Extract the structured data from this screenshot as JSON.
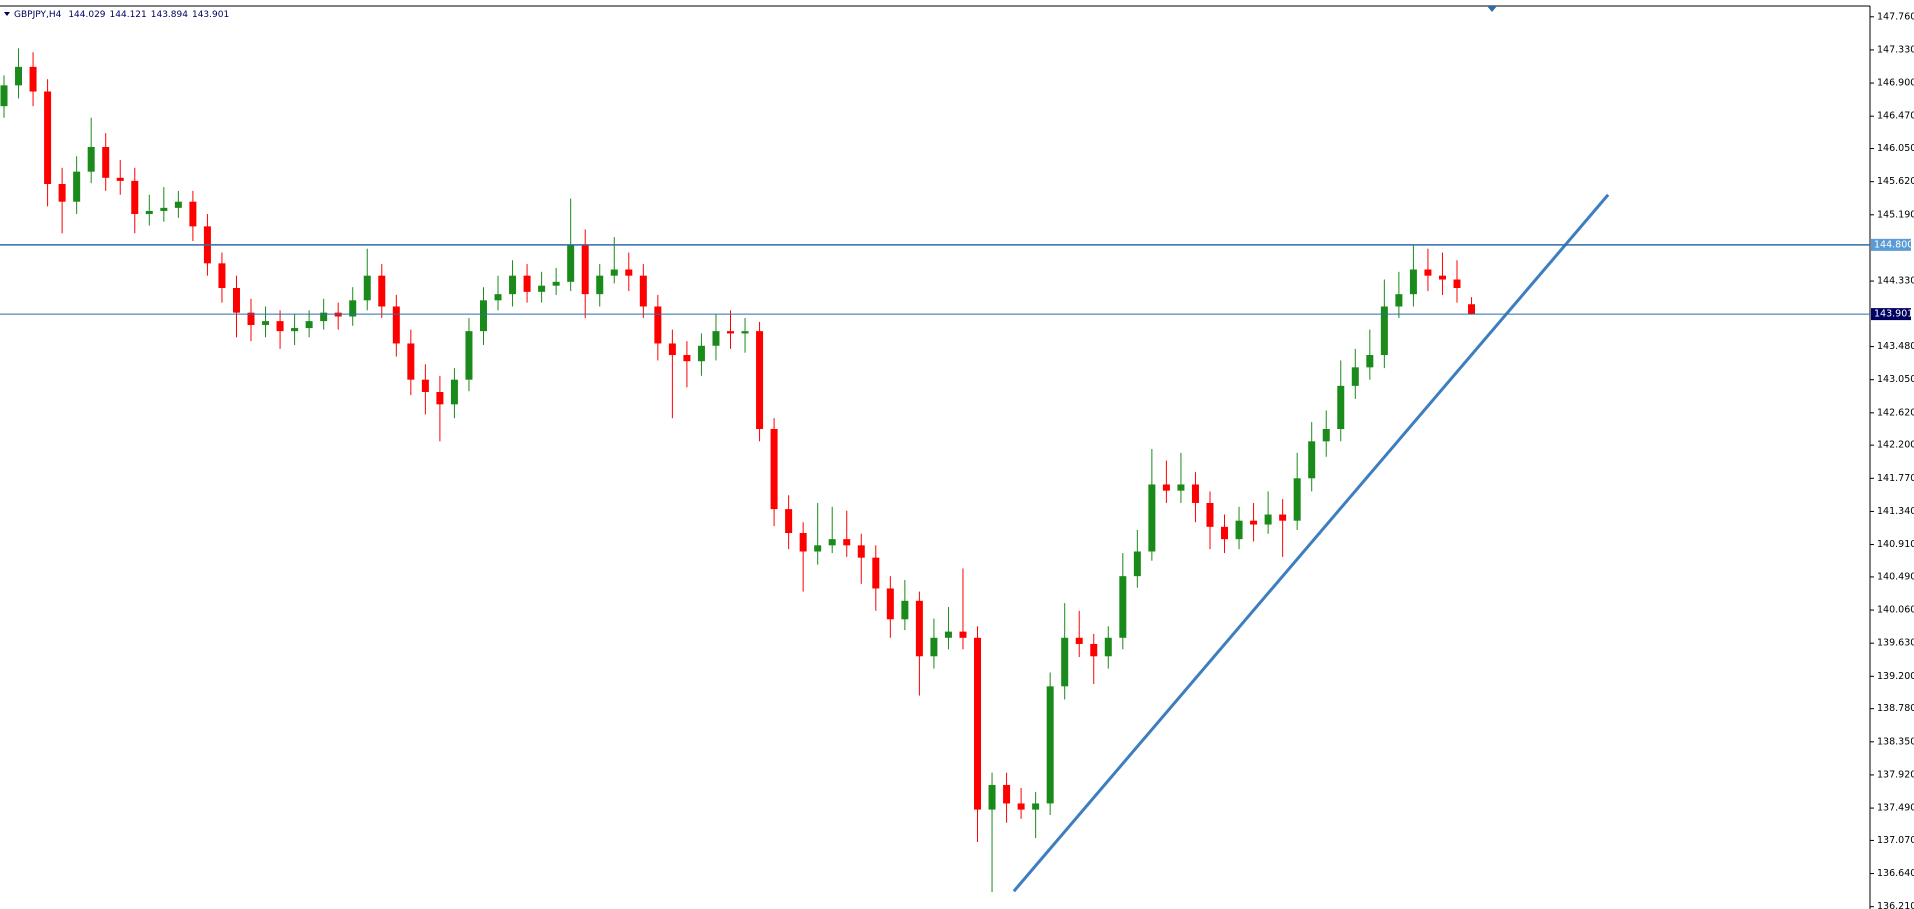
{
  "chart_data": {
    "type": "candlestick",
    "symbol": "GBPJPY,H4",
    "up_color": "#1a8a1a",
    "down_color": "#ff0000",
    "ylim": [
      136.18,
      147.9
    ],
    "yticks": [
      {
        "value": 147.76,
        "label": "147.760"
      },
      {
        "value": 147.33,
        "label": "147.330"
      },
      {
        "value": 146.9,
        "label": "146.900"
      },
      {
        "value": 146.47,
        "label": "146.470"
      },
      {
        "value": 146.05,
        "label": "146.050"
      },
      {
        "value": 145.62,
        "label": "145.620"
      },
      {
        "value": 145.19,
        "label": "145.190"
      },
      {
        "value": 144.33,
        "label": "144.330"
      },
      {
        "value": 143.48,
        "label": "143.480"
      },
      {
        "value": 143.05,
        "label": "143.050"
      },
      {
        "value": 142.62,
        "label": "142.620"
      },
      {
        "value": 142.2,
        "label": "142.200"
      },
      {
        "value": 141.77,
        "label": "141.770"
      },
      {
        "value": 141.34,
        "label": "141.340"
      },
      {
        "value": 140.91,
        "label": "140.910"
      },
      {
        "value": 140.49,
        "label": "140.490"
      },
      {
        "value": 140.06,
        "label": "140.060"
      },
      {
        "value": 139.63,
        "label": "139.630"
      },
      {
        "value": 139.2,
        "label": "139.200"
      },
      {
        "value": 138.78,
        "label": "138.780"
      },
      {
        "value": 138.35,
        "label": "138.350"
      },
      {
        "value": 137.92,
        "label": "137.920"
      },
      {
        "value": 137.49,
        "label": "137.490"
      },
      {
        "value": 137.07,
        "label": "137.070"
      },
      {
        "value": 136.64,
        "label": "136.640"
      },
      {
        "value": 136.21,
        "label": "136.210"
      }
    ],
    "hlines": [
      {
        "value": 144.8,
        "label": "144.800",
        "color": "#2e6da4"
      },
      {
        "value": 143.901,
        "color": "#2e6da4"
      }
    ],
    "trendline": {
      "x": [
        69.5,
        110.4
      ],
      "y": [
        136.41,
        145.45
      ],
      "color": "#3d7ebf"
    },
    "candles": [
      [
        146.6,
        147.0,
        146.45,
        146.87
      ],
      [
        146.87,
        147.35,
        146.7,
        147.11
      ],
      [
        147.11,
        147.3,
        146.6,
        146.79
      ],
      [
        146.79,
        146.95,
        145.3,
        145.59
      ],
      [
        145.59,
        145.8,
        144.95,
        145.36
      ],
      [
        145.36,
        145.95,
        145.2,
        145.75
      ],
      [
        145.75,
        146.45,
        145.6,
        146.07
      ],
      [
        146.07,
        146.25,
        145.5,
        145.67
      ],
      [
        145.67,
        145.9,
        145.45,
        145.63
      ],
      [
        145.63,
        145.8,
        144.95,
        145.2
      ],
      [
        145.2,
        145.45,
        145.05,
        145.24
      ],
      [
        145.24,
        145.55,
        145.1,
        145.28
      ],
      [
        145.28,
        145.5,
        145.15,
        145.36
      ],
      [
        145.36,
        145.5,
        144.85,
        145.04
      ],
      [
        145.04,
        145.2,
        144.4,
        144.56
      ],
      [
        144.56,
        144.7,
        144.05,
        144.24
      ],
      [
        144.24,
        144.4,
        143.6,
        143.92
      ],
      [
        143.92,
        144.1,
        143.55,
        143.76
      ],
      [
        143.76,
        144.0,
        143.6,
        143.81
      ],
      [
        143.81,
        143.95,
        143.45,
        143.68
      ],
      [
        143.68,
        143.9,
        143.5,
        143.72
      ],
      [
        143.72,
        143.95,
        143.6,
        143.81
      ],
      [
        143.81,
        144.1,
        143.7,
        143.92
      ],
      [
        143.92,
        144.05,
        143.7,
        143.87
      ],
      [
        143.87,
        144.25,
        143.75,
        144.08
      ],
      [
        144.08,
        144.75,
        143.95,
        144.4
      ],
      [
        144.4,
        144.55,
        143.85,
        144.0
      ],
      [
        144.0,
        144.15,
        143.35,
        143.52
      ],
      [
        143.52,
        143.7,
        142.85,
        143.05
      ],
      [
        143.05,
        143.25,
        142.6,
        142.89
      ],
      [
        142.89,
        143.1,
        142.25,
        142.73
      ],
      [
        142.73,
        143.2,
        142.55,
        143.05
      ],
      [
        143.05,
        143.85,
        142.9,
        143.68
      ],
      [
        143.68,
        144.25,
        143.5,
        144.08
      ],
      [
        144.08,
        144.4,
        143.95,
        144.16
      ],
      [
        144.16,
        144.6,
        144.0,
        144.4
      ],
      [
        144.4,
        144.55,
        144.05,
        144.19
      ],
      [
        144.19,
        144.45,
        144.05,
        144.27
      ],
      [
        144.27,
        144.5,
        144.15,
        144.32
      ],
      [
        144.32,
        145.4,
        144.2,
        144.8
      ],
      [
        144.8,
        145.0,
        143.85,
        144.16
      ],
      [
        144.16,
        144.55,
        144.0,
        144.4
      ],
      [
        144.4,
        144.9,
        144.3,
        144.48
      ],
      [
        144.48,
        144.7,
        144.2,
        144.4
      ],
      [
        144.4,
        144.55,
        143.85,
        144.0
      ],
      [
        144.0,
        144.15,
        143.3,
        143.52
      ],
      [
        143.52,
        143.7,
        142.55,
        143.37
      ],
      [
        143.37,
        143.55,
        142.95,
        143.29
      ],
      [
        143.29,
        143.65,
        143.1,
        143.49
      ],
      [
        143.49,
        143.9,
        143.3,
        143.68
      ],
      [
        143.68,
        143.95,
        143.45,
        143.65
      ],
      [
        143.65,
        143.85,
        143.4,
        143.68
      ],
      [
        143.68,
        143.8,
        142.25,
        142.41
      ],
      [
        142.41,
        142.55,
        141.15,
        141.37
      ],
      [
        141.37,
        141.55,
        140.85,
        141.06
      ],
      [
        141.06,
        141.2,
        140.3,
        140.82
      ],
      [
        140.82,
        141.45,
        140.65,
        140.9
      ],
      [
        140.9,
        141.4,
        140.8,
        140.98
      ],
      [
        140.98,
        141.35,
        140.75,
        140.9
      ],
      [
        140.9,
        141.05,
        140.4,
        140.74
      ],
      [
        140.74,
        140.9,
        140.05,
        140.34
      ],
      [
        140.34,
        140.5,
        139.7,
        139.94
      ],
      [
        139.94,
        140.45,
        139.8,
        140.18
      ],
      [
        140.18,
        140.3,
        138.95,
        139.46
      ],
      [
        139.46,
        139.95,
        139.3,
        139.7
      ],
      [
        139.7,
        140.1,
        139.55,
        139.78
      ],
      [
        139.78,
        140.6,
        139.55,
        139.7
      ],
      [
        139.7,
        139.85,
        137.05,
        137.47
      ],
      [
        137.47,
        137.95,
        136.4,
        137.79
      ],
      [
        137.79,
        137.95,
        137.3,
        137.55
      ],
      [
        137.55,
        137.75,
        137.35,
        137.47
      ],
      [
        137.47,
        137.7,
        137.1,
        137.55
      ],
      [
        137.55,
        139.25,
        137.4,
        139.07
      ],
      [
        139.07,
        140.15,
        138.9,
        139.7
      ],
      [
        139.7,
        140.05,
        139.45,
        139.62
      ],
      [
        139.62,
        139.75,
        139.1,
        139.46
      ],
      [
        139.46,
        139.85,
        139.3,
        139.7
      ],
      [
        139.7,
        140.8,
        139.55,
        140.5
      ],
      [
        140.5,
        141.1,
        140.35,
        140.82
      ],
      [
        140.82,
        142.15,
        140.7,
        141.69
      ],
      [
        141.69,
        142.0,
        141.45,
        141.61
      ],
      [
        141.61,
        142.1,
        141.45,
        141.69
      ],
      [
        141.69,
        141.85,
        141.2,
        141.45
      ],
      [
        141.45,
        141.6,
        140.85,
        141.14
      ],
      [
        141.14,
        141.3,
        140.8,
        140.98
      ],
      [
        140.98,
        141.4,
        140.85,
        141.22
      ],
      [
        141.22,
        141.45,
        140.95,
        141.17
      ],
      [
        141.17,
        141.6,
        141.05,
        141.3
      ],
      [
        141.3,
        141.5,
        140.75,
        141.22
      ],
      [
        141.22,
        142.1,
        141.1,
        141.77
      ],
      [
        141.77,
        142.5,
        141.6,
        142.25
      ],
      [
        142.25,
        142.65,
        142.05,
        142.41
      ],
      [
        142.41,
        143.3,
        142.25,
        142.97
      ],
      [
        142.97,
        143.45,
        142.8,
        143.21
      ],
      [
        143.21,
        143.7,
        143.05,
        143.37
      ],
      [
        143.37,
        144.35,
        143.2,
        144.0
      ],
      [
        144.0,
        144.45,
        143.85,
        144.16
      ],
      [
        144.16,
        144.8,
        144.0,
        144.48
      ],
      [
        144.48,
        144.75,
        144.2,
        144.4
      ],
      [
        144.4,
        144.7,
        144.15,
        144.35
      ],
      [
        144.35,
        144.6,
        144.05,
        144.24
      ],
      [
        144.029,
        144.121,
        143.894,
        143.901
      ]
    ]
  }
}
